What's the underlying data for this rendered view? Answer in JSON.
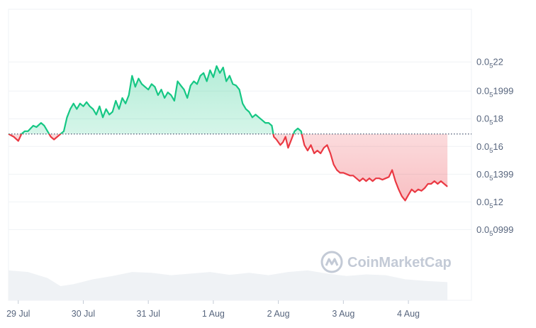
{
  "chart_data": {
    "type": "line",
    "title": "",
    "xlabel": "",
    "ylabel": "",
    "y_axis_position": "right",
    "grid": true,
    "baseline": 0.0517,
    "ylim": [
      0.0505,
      0.0526
    ],
    "xlim": [
      0,
      7.12
    ],
    "y_ticks": [
      {
        "value": 0.05222,
        "base": "0.0",
        "sub": "5",
        "rest": "22"
      },
      {
        "value": 0.05201,
        "base": "0.0",
        "sub": "5",
        "rest": "1999"
      },
      {
        "value": 0.05181,
        "base": "0.0",
        "sub": "5",
        "rest": "18"
      },
      {
        "value": 0.05161,
        "base": "0.0",
        "sub": "5",
        "rest": "16"
      },
      {
        "value": 0.05141,
        "base": "0.0",
        "sub": "5",
        "rest": "1399"
      },
      {
        "value": 0.05121,
        "base": "0.0",
        "sub": "5",
        "rest": "12"
      },
      {
        "value": 0.05101,
        "base": "0.0",
        "sub": "5",
        "rest": "0999"
      }
    ],
    "x_ticks": [
      {
        "label": "29 Jul",
        "x": 0.15
      },
      {
        "label": "30 Jul",
        "x": 1.15
      },
      {
        "label": "31 Jul",
        "x": 2.15
      },
      {
        "label": "1 Aug",
        "x": 3.15
      },
      {
        "label": "2 Aug",
        "x": 4.15
      },
      {
        "label": "3 Aug",
        "x": 5.15
      },
      {
        "label": "4 Aug",
        "x": 6.15
      }
    ],
    "series": [
      {
        "colors": {
          "above": "#16c784",
          "below": "#ea3943"
        },
        "points": [
          [
            0.0,
            0.0517
          ],
          [
            0.08,
            0.05168
          ],
          [
            0.15,
            0.05165
          ],
          [
            0.2,
            0.0517
          ],
          [
            0.25,
            0.05172
          ],
          [
            0.3,
            0.05172
          ],
          [
            0.38,
            0.05176
          ],
          [
            0.43,
            0.05175
          ],
          [
            0.5,
            0.05178
          ],
          [
            0.55,
            0.05176
          ],
          [
            0.6,
            0.05172
          ],
          [
            0.65,
            0.05168
          ],
          [
            0.7,
            0.05166
          ],
          [
            0.75,
            0.05168
          ],
          [
            0.8,
            0.0517
          ],
          [
            0.85,
            0.05172
          ],
          [
            0.9,
            0.05182
          ],
          [
            0.95,
            0.05188
          ],
          [
            1.0,
            0.05192
          ],
          [
            1.05,
            0.05188
          ],
          [
            1.1,
            0.05192
          ],
          [
            1.15,
            0.0519
          ],
          [
            1.2,
            0.05193
          ],
          [
            1.25,
            0.0519
          ],
          [
            1.3,
            0.05188
          ],
          [
            1.35,
            0.05184
          ],
          [
            1.4,
            0.0519
          ],
          [
            1.45,
            0.05182
          ],
          [
            1.5,
            0.05188
          ],
          [
            1.55,
            0.05184
          ],
          [
            1.6,
            0.05186
          ],
          [
            1.65,
            0.05194
          ],
          [
            1.7,
            0.05188
          ],
          [
            1.75,
            0.05196
          ],
          [
            1.8,
            0.05192
          ],
          [
            1.85,
            0.05198
          ],
          [
            1.9,
            0.05212
          ],
          [
            1.95,
            0.05204
          ],
          [
            2.0,
            0.0521
          ],
          [
            2.05,
            0.05206
          ],
          [
            2.1,
            0.05204
          ],
          [
            2.15,
            0.05202
          ],
          [
            2.2,
            0.05206
          ],
          [
            2.25,
            0.05204
          ],
          [
            2.3,
            0.05198
          ],
          [
            2.35,
            0.05202
          ],
          [
            2.4,
            0.05196
          ],
          [
            2.45,
            0.052
          ],
          [
            2.5,
            0.05198
          ],
          [
            2.55,
            0.05194
          ],
          [
            2.6,
            0.05208
          ],
          [
            2.65,
            0.05205
          ],
          [
            2.7,
            0.05202
          ],
          [
            2.75,
            0.05196
          ],
          [
            2.8,
            0.05205
          ],
          [
            2.85,
            0.05208
          ],
          [
            2.9,
            0.05206
          ],
          [
            2.95,
            0.05212
          ],
          [
            3.0,
            0.05214
          ],
          [
            3.05,
            0.05208
          ],
          [
            3.1,
            0.05216
          ],
          [
            3.15,
            0.05211
          ],
          [
            3.2,
            0.05219
          ],
          [
            3.25,
            0.05214
          ],
          [
            3.3,
            0.05218
          ],
          [
            3.35,
            0.05208
          ],
          [
            3.4,
            0.05212
          ],
          [
            3.45,
            0.05206
          ],
          [
            3.5,
            0.05205
          ],
          [
            3.55,
            0.05202
          ],
          [
            3.6,
            0.05192
          ],
          [
            3.65,
            0.05188
          ],
          [
            3.7,
            0.05186
          ],
          [
            3.75,
            0.05182
          ],
          [
            3.8,
            0.05184
          ],
          [
            3.85,
            0.05182
          ],
          [
            3.9,
            0.0518
          ],
          [
            3.95,
            0.05178
          ],
          [
            4.0,
            0.05178
          ],
          [
            4.05,
            0.05176
          ],
          [
            4.08,
            0.05168
          ],
          [
            4.12,
            0.05166
          ],
          [
            4.18,
            0.05162
          ],
          [
            4.22,
            0.05164
          ],
          [
            4.26,
            0.05168
          ],
          [
            4.3,
            0.0516
          ],
          [
            4.35,
            0.05166
          ],
          [
            4.4,
            0.05172
          ],
          [
            4.45,
            0.05174
          ],
          [
            4.5,
            0.05172
          ],
          [
            4.55,
            0.05162
          ],
          [
            4.6,
            0.05158
          ],
          [
            4.65,
            0.05162
          ],
          [
            4.7,
            0.05156
          ],
          [
            4.75,
            0.05158
          ],
          [
            4.8,
            0.05156
          ],
          [
            4.85,
            0.0516
          ],
          [
            4.9,
            0.05162
          ],
          [
            4.95,
            0.05156
          ],
          [
            5.0,
            0.05148
          ],
          [
            5.05,
            0.05144
          ],
          [
            5.1,
            0.05142
          ],
          [
            5.15,
            0.05142
          ],
          [
            5.2,
            0.05141
          ],
          [
            5.25,
            0.0514
          ],
          [
            5.3,
            0.0514
          ],
          [
            5.35,
            0.05138
          ],
          [
            5.4,
            0.05136
          ],
          [
            5.45,
            0.05138
          ],
          [
            5.5,
            0.05136
          ],
          [
            5.55,
            0.05138
          ],
          [
            5.6,
            0.05136
          ],
          [
            5.65,
            0.05138
          ],
          [
            5.7,
            0.05138
          ],
          [
            5.75,
            0.05137
          ],
          [
            5.8,
            0.05138
          ],
          [
            5.85,
            0.05139
          ],
          [
            5.9,
            0.05144
          ],
          [
            5.95,
            0.05136
          ],
          [
            6.0,
            0.0513
          ],
          [
            6.05,
            0.05125
          ],
          [
            6.1,
            0.05122
          ],
          [
            6.15,
            0.05126
          ],
          [
            6.2,
            0.0513
          ],
          [
            6.25,
            0.05128
          ],
          [
            6.3,
            0.0513
          ],
          [
            6.35,
            0.05129
          ],
          [
            6.4,
            0.05131
          ],
          [
            6.45,
            0.05134
          ],
          [
            6.5,
            0.05134
          ],
          [
            6.55,
            0.05136
          ],
          [
            6.6,
            0.05134
          ],
          [
            6.65,
            0.05136
          ],
          [
            6.7,
            0.05134
          ],
          [
            6.75,
            0.05132
          ]
        ]
      }
    ],
    "volume": [
      [
        0.0,
        0.74
      ],
      [
        0.3,
        0.7
      ],
      [
        0.6,
        0.55
      ],
      [
        0.8,
        0.35
      ],
      [
        1.0,
        0.4
      ],
      [
        1.3,
        0.52
      ],
      [
        1.6,
        0.6
      ],
      [
        1.9,
        0.7
      ],
      [
        2.2,
        0.68
      ],
      [
        2.5,
        0.62
      ],
      [
        2.8,
        0.66
      ],
      [
        3.1,
        0.7
      ],
      [
        3.4,
        0.63
      ],
      [
        3.7,
        0.68
      ],
      [
        4.0,
        0.62
      ],
      [
        4.3,
        0.7
      ],
      [
        4.6,
        0.74
      ],
      [
        4.9,
        0.66
      ],
      [
        5.2,
        0.6
      ],
      [
        5.5,
        0.64
      ],
      [
        5.8,
        0.62
      ],
      [
        6.1,
        0.52
      ],
      [
        6.4,
        0.48
      ],
      [
        6.75,
        0.45
      ]
    ]
  },
  "watermark": {
    "text": "CoinMarketCap"
  }
}
